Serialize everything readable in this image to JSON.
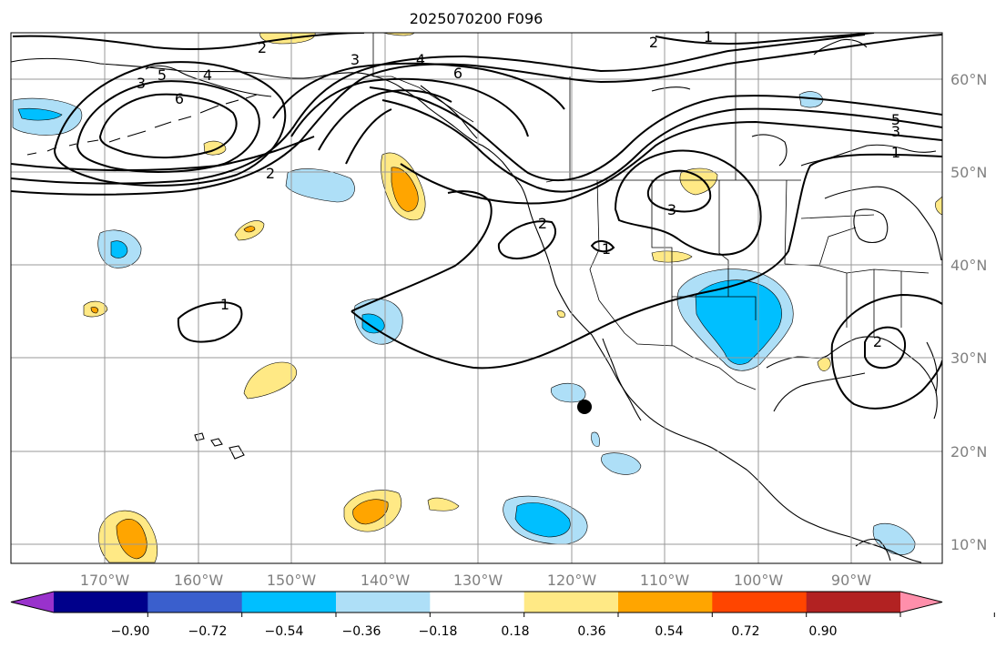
{
  "title": "2025070200 F096",
  "grid_lines": true,
  "lon_labels": [
    "170°W",
    "160°W",
    "150°W",
    "140°W",
    "130°W",
    "120°W",
    "110°W",
    "100°W",
    "90°W"
  ],
  "lat_labels": [
    "60°N",
    "50°N",
    "40°N",
    "30°N",
    "20°N",
    "10°N"
  ],
  "colorbar": {
    "orientation": "horizontal",
    "extend": "both",
    "colors": [
      "#9932cc",
      "#00008b",
      "#3a5fcd",
      "#00bfff",
      "#aedff7",
      "#ffffff",
      "#ffe985",
      "#ffa500",
      "#ff4500",
      "#b22222",
      "#ff8fab"
    ],
    "tick_labels": [
      "−0.90",
      "−0.72",
      "−0.54",
      "−0.36",
      "−0.18",
      "0.18",
      "0.36",
      "0.54",
      "0.72",
      "0.90"
    ]
  },
  "contour_labels": [
    "1",
    "1",
    "1",
    "1",
    "2",
    "2",
    "2",
    "2",
    "2",
    "3",
    "3",
    "3",
    "3",
    "4",
    "4",
    "5",
    "5",
    "6",
    "6"
  ],
  "marker": {
    "color": "#000000",
    "shape": "dot"
  },
  "shade_colors": {
    "neg_light": "#aedff7",
    "neg_strong": "#00bfff",
    "pos_light": "#ffe985",
    "pos_strong": "#ffa500",
    "pos_stronger": "#ff4500"
  }
}
